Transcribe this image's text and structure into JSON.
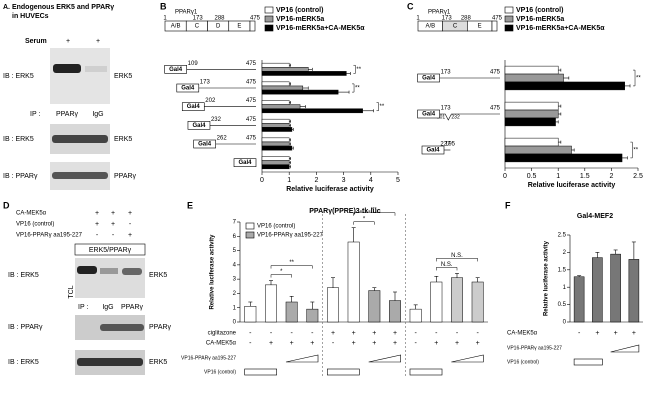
{
  "panel_labels": [
    "B",
    "C",
    "D",
    "E",
    "F"
  ],
  "blot_a": {
    "title": "A. Endogenous ERK5 and PPARγ",
    "subtitle": "in HUVECs",
    "serum": "Serum",
    "sign": "+",
    "ip_label": "IP :",
    "ip_lanes": [
      "PPARγ",
      "IgG"
    ],
    "rows": [
      {
        "label": "IB : ERK5",
        "band": "ERK5"
      },
      {
        "label": "IB : ERK5",
        "band": "ERK5"
      },
      {
        "label": "IB : PPARγ",
        "band": "PPARγ"
      }
    ]
  },
  "blot_d": {
    "conditions": [
      {
        "label": "CA-MEK5α",
        "signs": [
          "+",
          "+",
          "+"
        ]
      },
      {
        "label": "VP16 (control)",
        "signs": [
          "+",
          "+",
          "-"
        ]
      },
      {
        "label": "VP16-PPARγ aa195-227",
        "signs": [
          "-",
          "-",
          "+"
        ]
      }
    ],
    "box_title": "ERK5/PPARγ",
    "lane_label": "TCL",
    "ip_label": "IP :",
    "ip_lanes": [
      "IgG",
      "PPARγ"
    ],
    "rows": [
      {
        "label": "IB : ERK5",
        "band": "ERK5"
      },
      {
        "label": "IB : PPARγ",
        "band": "PPARγ"
      },
      {
        "label": "IB : ERK5",
        "band": "ERK5"
      }
    ]
  },
  "chart_data": [
    {
      "type": "hbar",
      "construct": {
        "name": "PPARγ1",
        "domains": [
          "A/B",
          "C",
          "D",
          "E"
        ],
        "positions": [
          "1",
          "173",
          "288",
          "475"
        ]
      },
      "construct_label": "Gal4",
      "categories": [
        "109",
        "173",
        "202",
        "232",
        "262",
        null
      ],
      "end_labels": [
        "475",
        "475",
        "475",
        "475",
        "475",
        null
      ],
      "series": [
        {
          "name": "VP16 (control)",
          "color": "#ffffff",
          "values": [
            1,
            1,
            1,
            1,
            1,
            1
          ],
          "errors": [
            0.05,
            0.05,
            0.05,
            0.05,
            0.05,
            0.05
          ]
        },
        {
          "name": "VP16-mERK5a",
          "color": "#999999",
          "values": [
            1.7,
            1.5,
            1.4,
            1.0,
            1.0,
            1.0
          ],
          "errors": [
            0.15,
            0.2,
            0.2,
            0.05,
            0.05,
            0.05
          ]
        },
        {
          "name": "VP16-mERK5a+CA-MEK5α",
          "color": "#000000",
          "values": [
            3.1,
            2.8,
            3.7,
            1.1,
            1.1,
            1.0
          ],
          "errors": [
            0.15,
            0.4,
            0.4,
            0.05,
            0.05,
            0.05
          ]
        }
      ],
      "significance": [
        "**",
        "**",
        "**",
        null,
        null,
        null
      ],
      "xlim": [
        0,
        5
      ],
      "xticks": [
        0,
        1,
        2,
        3,
        4,
        5
      ],
      "xlabel": "Relative luciferase activity"
    },
    {
      "type": "hbar",
      "construct": {
        "name": "PPARγ1",
        "domains": [
          "A/B",
          "C",
          "E"
        ],
        "positions": [
          "1",
          "173",
          "288",
          "475"
        ]
      },
      "construct_label": "Gal4",
      "categories": [
        "173",
        "173",
        "195"
      ],
      "end_labels": [
        "475",
        "475",
        "227"
      ],
      "deletions": [
        null,
        [
          "201",
          "232"
        ],
        null
      ],
      "series": [
        {
          "name": "VP16 (control)",
          "color": "#ffffff",
          "values": [
            1,
            1,
            1
          ],
          "errors": [
            0.05,
            0.05,
            0.05
          ]
        },
        {
          "name": "VP16-mERK5a",
          "color": "#999999",
          "values": [
            1.1,
            1.0,
            1.25
          ],
          "errors": [
            0.1,
            0.05,
            0.05
          ]
        },
        {
          "name": "VP16-mERK5a+CA-MEK5α",
          "color": "#000000",
          "values": [
            2.25,
            0.95,
            2.2
          ],
          "errors": [
            0.1,
            0.05,
            0.1
          ]
        }
      ],
      "significance": [
        "**",
        null,
        "**"
      ],
      "xlim": [
        0,
        2.5
      ],
      "xticks": [
        0,
        0.5,
        1,
        1.5,
        2,
        2.5
      ],
      "xlabel": "Relative luciferase activity"
    },
    {
      "type": "bar",
      "title": "PPARγ(PPRE)3-tk-luc",
      "ylabel": "Relative luciferase activity",
      "legend": [
        {
          "name": "VP16 (control)",
          "color": "#ffffff"
        },
        {
          "name": "VP16-PPARγ aa195-227",
          "color": "#aaaaaa"
        }
      ],
      "values": [
        1.1,
        2.6,
        1.4,
        0.9,
        2.4,
        5.6,
        2.2,
        1.5,
        0.9,
        2.8,
        3.1,
        2.8
      ],
      "errors": [
        0.3,
        0.3,
        0.4,
        0.5,
        0.7,
        1.0,
        0.2,
        0.6,
        0.3,
        0.4,
        0.3,
        0.3
      ],
      "colors": [
        "#ffffff",
        "#ffffff",
        "#aaaaaa",
        "#aaaaaa",
        "#ffffff",
        "#ffffff",
        "#aaaaaa",
        "#aaaaaa",
        "#ffffff",
        "#ffffff",
        "#cccccc",
        "#cccccc"
      ],
      "ylim": [
        0,
        7
      ],
      "yticks": [
        0,
        1,
        2,
        3,
        4,
        5,
        6,
        7
      ],
      "significance": [
        "*",
        "**",
        "*",
        "**",
        "N.S.",
        "N.S."
      ],
      "rows": [
        {
          "label": "ciglitazone",
          "signs": [
            "-",
            "-",
            "-",
            "-",
            "+",
            "+",
            "+",
            "+",
            "-",
            "-",
            "-",
            "-"
          ]
        },
        {
          "label": "CA-MEK5α",
          "signs": [
            "-",
            "+",
            "+",
            "+",
            "-",
            "+",
            "+",
            "+",
            "-",
            "+",
            "+",
            "+"
          ]
        }
      ],
      "ramp_label": "VP16-PPARγ aa195-227",
      "box_label": "VP16 (control)"
    },
    {
      "type": "bar",
      "title": "Gal4-MEF2",
      "ylabel": "Relative luciferase activity",
      "values": [
        1.3,
        1.85,
        1.95,
        1.8
      ],
      "errors": [
        0.03,
        0.15,
        0.12,
        0.5
      ],
      "color": "#777777",
      "ylim": [
        0,
        2.5
      ],
      "yticks": [
        0,
        0.5,
        1,
        1.5,
        2,
        2.5
      ],
      "rows": [
        {
          "label": "CA-MEK5α",
          "signs": [
            "-",
            "+",
            "+",
            "+"
          ]
        }
      ],
      "ramp_label": "VP16-PPARγ aa195-227",
      "box_label": "VP16 (control)"
    }
  ]
}
